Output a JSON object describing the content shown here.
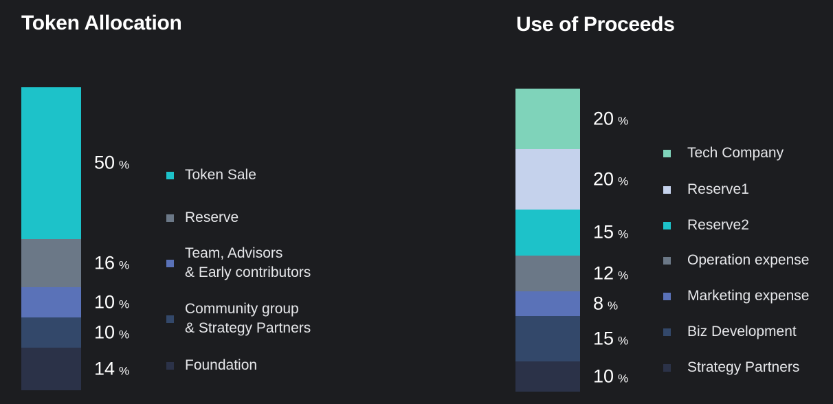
{
  "chart_data": [
    {
      "type": "bar",
      "subtype": "single-stacked-100",
      "title": "Token Allocation",
      "unit": "%",
      "series": [
        {
          "name": "Token Sale",
          "value": 50,
          "color": "#1dc2c9"
        },
        {
          "name": "Reserve",
          "value": 16,
          "color": "#6b7887"
        },
        {
          "name": "Team, Advisors & Early contributors",
          "value": 10,
          "color": "#5a72b8"
        },
        {
          "name": "Community group & Strategy Partners",
          "value": 10,
          "color": "#33486a"
        },
        {
          "name": "Foundation",
          "value": 14,
          "color": "#2b3248"
        }
      ],
      "legend_lines": [
        [
          "Token Sale"
        ],
        [
          "Reserve"
        ],
        [
          "Team, Advisors",
          "& Early contributors"
        ],
        [
          "Community group",
          "& Strategy Partners"
        ],
        [
          "Foundation"
        ]
      ]
    },
    {
      "type": "bar",
      "subtype": "single-stacked-100",
      "title": "Use of Proceeds",
      "unit": "%",
      "series": [
        {
          "name": "Tech Company",
          "value": 20,
          "color": "#7fd3ba"
        },
        {
          "name": "Reserve1",
          "value": 20,
          "color": "#c5d2ec"
        },
        {
          "name": "Reserve2",
          "value": 15,
          "color": "#1dc2c9"
        },
        {
          "name": "Operation expense",
          "value": 12,
          "color": "#6b7887"
        },
        {
          "name": "Marketing expense",
          "value": 8,
          "color": "#5a72b8"
        },
        {
          "name": "Biz Development",
          "value": 15,
          "color": "#33486a"
        },
        {
          "name": "Strategy Partners",
          "value": 10,
          "color": "#2b3248"
        }
      ],
      "legend_lines": [
        [
          "Tech Company"
        ],
        [
          "Reserve1"
        ],
        [
          "Reserve2"
        ],
        [
          "Operation expense"
        ],
        [
          "Marketing expense"
        ],
        [
          "Biz Development"
        ],
        [
          "Strategy Partners"
        ]
      ]
    }
  ]
}
